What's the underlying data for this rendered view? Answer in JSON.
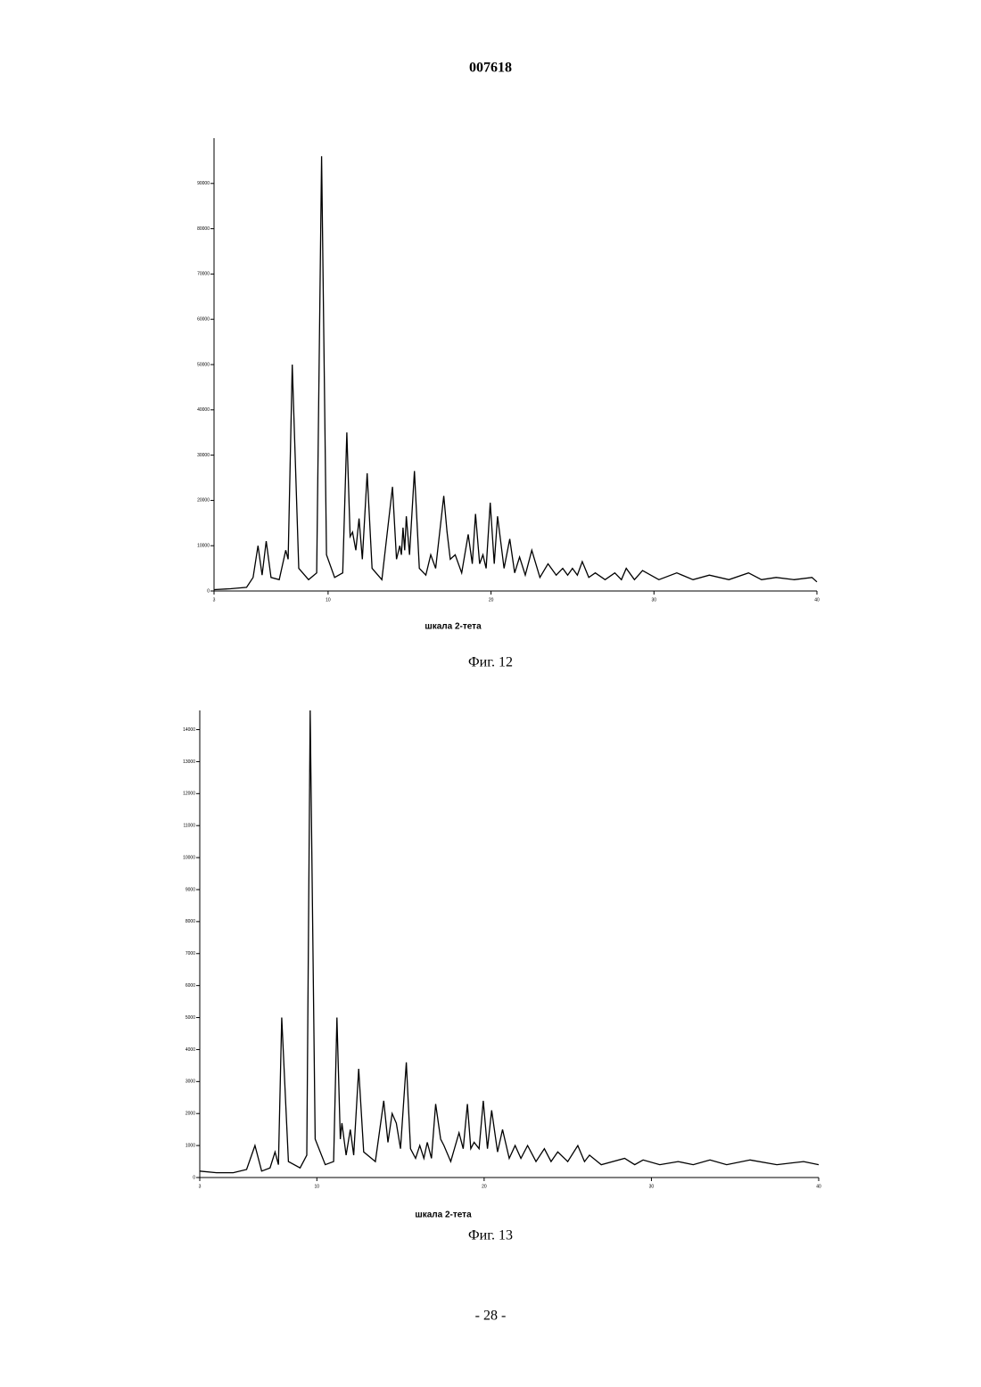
{
  "header": "007618",
  "chart_data": [
    {
      "type": "line",
      "xlabel": "шкала 2-тета",
      "caption": "Фиг. 12",
      "color": "#000000",
      "xlim": [
        3,
        40
      ],
      "xticks": [
        3,
        10,
        20,
        30,
        40
      ],
      "ylim": [
        0,
        100000
      ],
      "yticks": [
        0,
        10000,
        20000,
        30000,
        40000,
        50000,
        60000,
        70000,
        80000,
        90000
      ],
      "x": [
        3,
        4,
        5,
        5.4,
        5.7,
        5.95,
        6.2,
        6.5,
        7.0,
        7.4,
        7.55,
        7.8,
        8.2,
        8.8,
        9.3,
        9.6,
        9.9,
        10.4,
        10.9,
        11.15,
        11.35,
        11.5,
        11.7,
        11.9,
        12.1,
        12.4,
        12.7,
        13.3,
        13.95,
        14.2,
        14.4,
        14.5,
        14.6,
        14.7,
        14.8,
        15.0,
        15.3,
        15.6,
        16.0,
        16.3,
        16.6,
        17.1,
        17.3,
        17.5,
        17.8,
        18.2,
        18.6,
        18.85,
        19.05,
        19.3,
        19.5,
        19.7,
        19.95,
        20.2,
        20.4,
        20.8,
        21.15,
        21.45,
        21.75,
        22.1,
        22.5,
        23.0,
        23.5,
        24.0,
        24.4,
        24.7,
        25.0,
        25.3,
        25.6,
        26.0,
        26.4,
        27.0,
        27.6,
        28.0,
        28.3,
        28.8,
        29.3,
        30.3,
        31.4,
        32.4,
        33.4,
        34.6,
        35.8,
        36.6,
        37.5,
        38.6,
        39.7,
        40
      ],
      "values": [
        300,
        500,
        800,
        3000,
        10000,
        3500,
        11000,
        3000,
        2500,
        9000,
        7000,
        50000,
        5000,
        2500,
        4000,
        96000,
        8000,
        3000,
        4000,
        35000,
        12000,
        13000,
        9000,
        16000,
        7000,
        26000,
        5000,
        2500,
        23000,
        7000,
        10000,
        8000,
        14000,
        9000,
        16500,
        8000,
        26500,
        5000,
        3500,
        8000,
        5000,
        21000,
        13000,
        7000,
        8000,
        4000,
        12500,
        6000,
        17000,
        6000,
        8000,
        5000,
        19500,
        6000,
        16500,
        5000,
        11500,
        4000,
        7500,
        3500,
        9000,
        3000,
        6000,
        3500,
        5000,
        3500,
        5000,
        3500,
        6500,
        3000,
        4000,
        2500,
        4000,
        2500,
        5000,
        2500,
        4500,
        2500,
        4000,
        2500,
        3500,
        2500,
        4000,
        2500,
        3000,
        2500,
        3000,
        2000
      ]
    },
    {
      "type": "line",
      "xlabel": "шкала 2-тета",
      "caption": "Фиг. 13",
      "color": "#000000",
      "xlim": [
        3,
        40
      ],
      "xticks": [
        3,
        10,
        20,
        30,
        40
      ],
      "ylim": [
        0,
        14600
      ],
      "yticks": [
        0,
        1000,
        2000,
        3000,
        4000,
        5000,
        6000,
        7000,
        8000,
        9000,
        10000,
        11000,
        12000,
        13000,
        14000
      ],
      "x": [
        3,
        4,
        5,
        5.8,
        6.3,
        6.7,
        7.2,
        7.5,
        7.7,
        7.9,
        8.3,
        9.0,
        9.4,
        9.6,
        9.9,
        10.5,
        11.0,
        11.2,
        11.4,
        11.5,
        11.75,
        12.0,
        12.2,
        12.5,
        12.8,
        13.5,
        14.0,
        14.25,
        14.5,
        14.75,
        15.0,
        15.35,
        15.6,
        15.9,
        16.15,
        16.4,
        16.6,
        16.85,
        17.1,
        17.4,
        17.6,
        18.0,
        18.5,
        18.75,
        19.0,
        19.2,
        19.4,
        19.7,
        19.95,
        20.2,
        20.45,
        20.8,
        21.1,
        21.5,
        21.85,
        22.2,
        22.6,
        23.1,
        23.6,
        24.0,
        24.4,
        25.0,
        25.6,
        26.0,
        26.3,
        27.0,
        28.4,
        29.0,
        29.5,
        30.5,
        31.6,
        32.5,
        33.5,
        34.5,
        35.9,
        37.5,
        39.1,
        40
      ],
      "values": [
        200,
        150,
        150,
        250,
        1000,
        200,
        300,
        800,
        400,
        5000,
        500,
        300,
        700,
        14600,
        1200,
        400,
        500,
        5000,
        1200,
        1700,
        700,
        1500,
        700,
        3400,
        800,
        500,
        2400,
        1100,
        2000,
        1700,
        900,
        3600,
        900,
        600,
        1000,
        600,
        1100,
        600,
        2300,
        1200,
        1000,
        500,
        1400,
        900,
        2300,
        900,
        1100,
        900,
        2400,
        900,
        2100,
        800,
        1500,
        600,
        1000,
        600,
        1000,
        500,
        900,
        500,
        800,
        500,
        1000,
        500,
        700,
        400,
        600,
        400,
        550,
        400,
        500,
        400,
        550,
        400,
        550,
        400,
        500,
        400
      ]
    }
  ],
  "footer": "- 28 -"
}
